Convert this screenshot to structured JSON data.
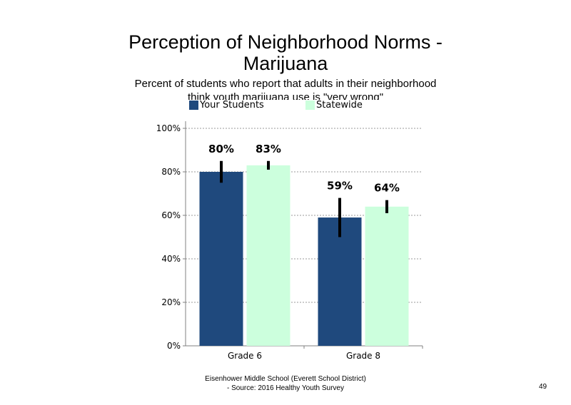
{
  "slide": {
    "title_line1": "Perception of Neighborhood Norms -",
    "title_line2": "Marijuana",
    "subtitle_line1": "Percent of students who report that adults in their neighborhood",
    "subtitle_line2": "think youth marijuana use is \"very wrong\"",
    "footer_line1": "Eisenhower Middle School (Everett School District)",
    "footer_line2": "- Source: 2016 Healthy Youth Survey",
    "page_number": "49"
  },
  "chart_data": {
    "type": "bar",
    "categories": [
      "Grade 6",
      "Grade 8"
    ],
    "series": [
      {
        "name": "Your Students",
        "color": "#1F497D",
        "values": [
          80,
          59
        ],
        "labels": [
          "80%",
          "59%"
        ],
        "error": [
          [
            75,
            85
          ],
          [
            50,
            68
          ]
        ]
      },
      {
        "name": "Statewide",
        "color": "#CCFFDD",
        "values": [
          83,
          64
        ],
        "labels": [
          "83%",
          "64%"
        ],
        "error": [
          [
            81,
            85
          ],
          [
            61,
            67
          ]
        ]
      }
    ],
    "ylim": [
      0,
      100
    ],
    "yticks": [
      0,
      20,
      40,
      60,
      80,
      100
    ],
    "ytick_labels": [
      "0%",
      "20%",
      "40%",
      "60%",
      "80%",
      "100%"
    ],
    "grid": "dotted horizontal",
    "legend_position": "top"
  }
}
